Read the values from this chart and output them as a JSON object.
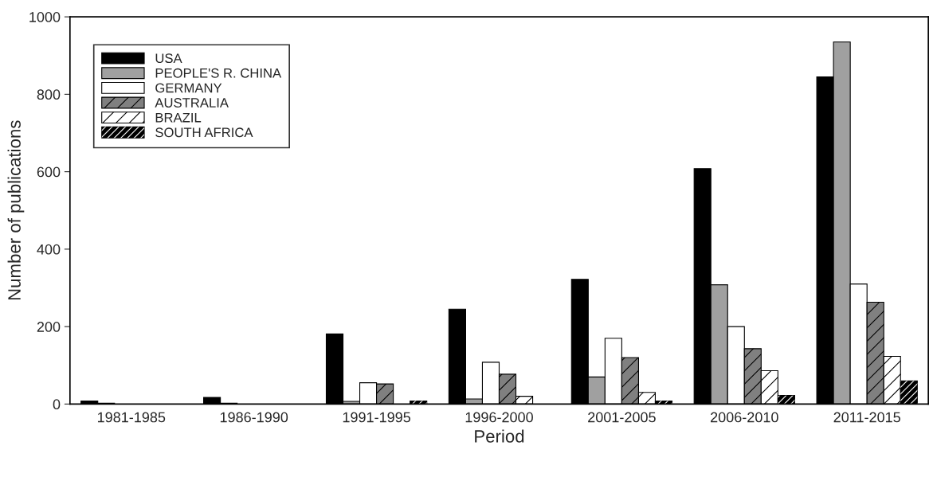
{
  "chart_data": {
    "type": "bar",
    "xlabel": "Period",
    "ylabel": "Number of publications",
    "categories": [
      "1981-1985",
      "1986-1990",
      "1991-1995",
      "1996-2000",
      "2001-2005",
      "2006-2010",
      "2011-2015"
    ],
    "series": [
      {
        "name": "USA",
        "color": "#000000",
        "values": [
          8,
          17,
          181,
          245,
          322,
          608,
          845
        ]
      },
      {
        "name": "PEOPLE'S R. CHINA",
        "color": "#a0a0a0",
        "values": [
          2,
          2,
          7,
          13,
          70,
          308,
          935
        ]
      },
      {
        "name": "GERMANY",
        "color": "#ffffff",
        "values": [
          null,
          null,
          55,
          108,
          170,
          200,
          310
        ]
      },
      {
        "name": "AUSTRALIA",
        "color": "#808080",
        "values": [
          null,
          null,
          52,
          77,
          120,
          143,
          263
        ]
      },
      {
        "name": "BRAZIL",
        "color": "#ffffff",
        "values": [
          null,
          null,
          null,
          20,
          30,
          86,
          123
        ]
      },
      {
        "name": "SOUTH AFRICA",
        "color": "#000000",
        "values": [
          null,
          null,
          8,
          null,
          8,
          22,
          60
        ]
      }
    ],
    "ylim": [
      0,
      1000
    ],
    "yticks": [
      0,
      200,
      400,
      600,
      800,
      1000
    ],
    "grid": false,
    "legend": "top left"
  }
}
